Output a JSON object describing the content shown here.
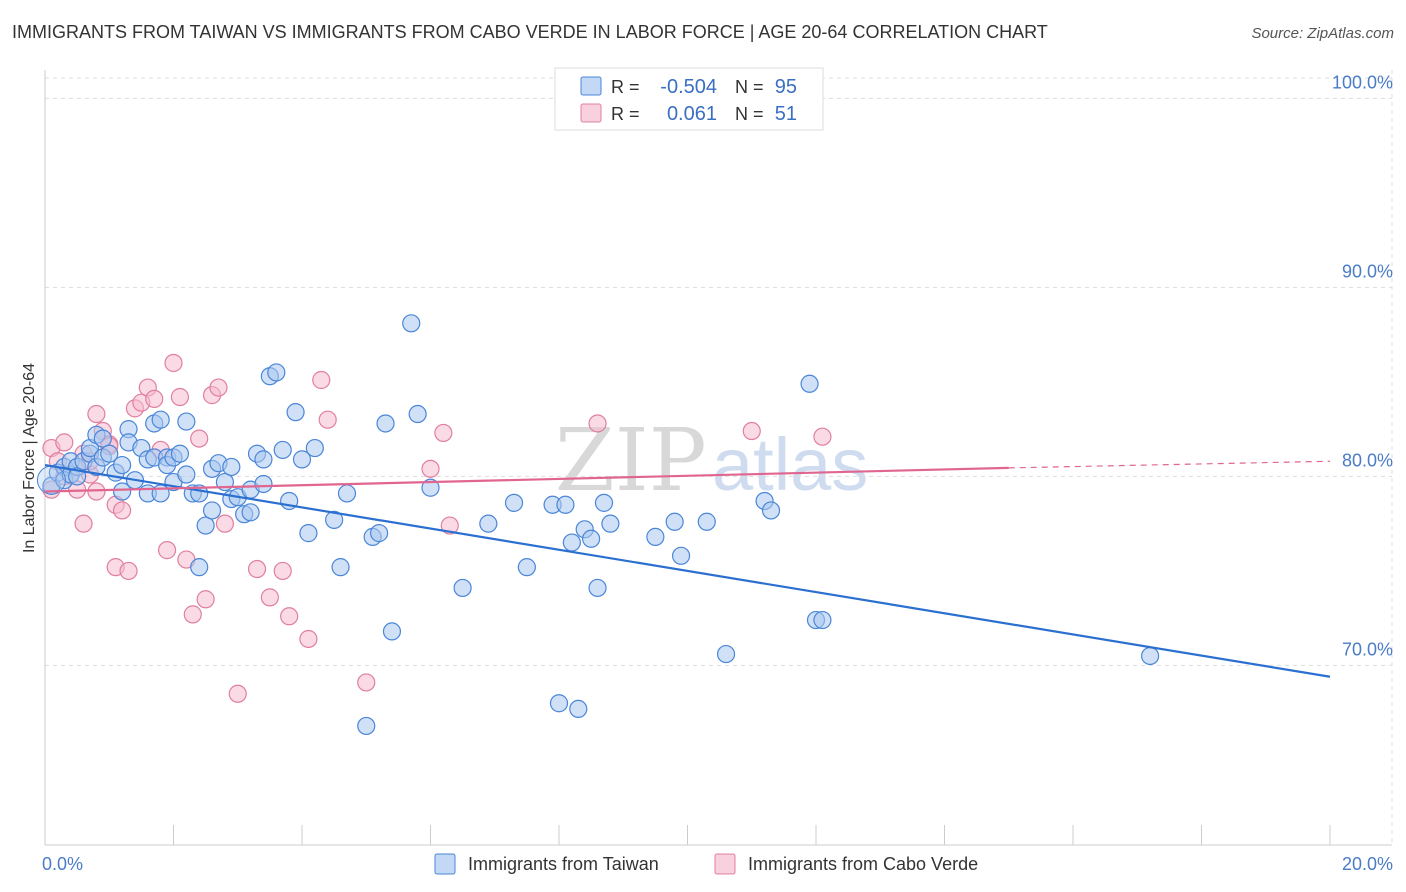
{
  "title": "IMMIGRANTS FROM TAIWAN VS IMMIGRANTS FROM CABO VERDE IN LABOR FORCE | AGE 20-64 CORRELATION CHART",
  "source": "Source: ZipAtlas.com",
  "watermark": {
    "zip": "ZIP",
    "atlas": "atlas"
  },
  "colors": {
    "taiwan_fill": "#aac8f0",
    "taiwan_stroke": "#4a86d8",
    "taiwan_line": "#2b6fd0",
    "cabo_fill": "#f6bcd0",
    "cabo_stroke": "#e07fa0",
    "cabo_line": "#e06690",
    "grid": "#dddddd",
    "tick_text": "#4a7cc7"
  },
  "legend": {
    "rows": [
      {
        "r_label": "R =",
        "r_value": "-0.504",
        "n_label": "N =",
        "n_value": "95",
        "series": "taiwan"
      },
      {
        "r_label": "R =",
        "r_value": "0.061",
        "n_label": "N =",
        "n_value": "51",
        "series": "cabo"
      }
    ]
  },
  "chart_data": {
    "type": "scatter",
    "title": "IMMIGRANTS FROM TAIWAN VS IMMIGRANTS FROM CABO VERDE IN LABOR FORCE | AGE 20-64 CORRELATION CHART",
    "xlabel": "",
    "ylabel": "In Labor Force | Age 20-64",
    "xlim": [
      0,
      20
    ],
    "ylim": [
      60.5,
      101.5
    ],
    "x_tick_labels": [
      "0.0%",
      "20.0%"
    ],
    "x_tick_values": [
      0,
      20
    ],
    "y_tick_labels": [
      "70.0%",
      "80.0%",
      "90.0%",
      "100.0%"
    ],
    "y_tick_values": [
      70,
      80,
      90,
      100
    ],
    "grid": true,
    "legend_position": "top-center",
    "series": [
      {
        "name": "Immigrants from Taiwan",
        "key": "taiwan",
        "trend": {
          "x1": 0,
          "y1": 80.6,
          "x2": 20,
          "y2": 69.4,
          "dashed_from": null
        },
        "points": [
          [
            0.1,
            79.5
          ],
          [
            0.2,
            80.2
          ],
          [
            0.3,
            80.5
          ],
          [
            0.3,
            79.8
          ],
          [
            0.4,
            80.1
          ],
          [
            0.4,
            80.8
          ],
          [
            0.5,
            80.5
          ],
          [
            0.5,
            80.0
          ],
          [
            0.6,
            80.8
          ],
          [
            0.7,
            81.2
          ],
          [
            0.7,
            81.5
          ],
          [
            0.8,
            82.2
          ],
          [
            0.8,
            80.5
          ],
          [
            0.9,
            81.0
          ],
          [
            0.9,
            82.0
          ],
          [
            1.0,
            81.2
          ],
          [
            1.1,
            80.2
          ],
          [
            1.2,
            79.2
          ],
          [
            1.2,
            80.6
          ],
          [
            1.3,
            82.5
          ],
          [
            1.3,
            81.8
          ],
          [
            1.4,
            79.8
          ],
          [
            1.5,
            81.5
          ],
          [
            1.6,
            79.1
          ],
          [
            1.6,
            80.9
          ],
          [
            1.7,
            82.8
          ],
          [
            1.7,
            81.0
          ],
          [
            1.8,
            79.1
          ],
          [
            1.8,
            83.0
          ],
          [
            1.9,
            81.0
          ],
          [
            1.9,
            80.6
          ],
          [
            2.0,
            79.7
          ],
          [
            2.0,
            81.0
          ],
          [
            2.1,
            81.2
          ],
          [
            2.2,
            80.1
          ],
          [
            2.2,
            82.9
          ],
          [
            2.3,
            79.1
          ],
          [
            2.4,
            79.1
          ],
          [
            2.4,
            75.2
          ],
          [
            2.5,
            77.4
          ],
          [
            2.6,
            78.2
          ],
          [
            2.6,
            80.4
          ],
          [
            2.7,
            80.7
          ],
          [
            2.8,
            79.7
          ],
          [
            2.9,
            80.5
          ],
          [
            2.9,
            78.8
          ],
          [
            3.0,
            78.9
          ],
          [
            3.1,
            78.0
          ],
          [
            3.2,
            79.3
          ],
          [
            3.2,
            78.1
          ],
          [
            3.3,
            81.2
          ],
          [
            3.4,
            79.6
          ],
          [
            3.4,
            80.9
          ],
          [
            3.5,
            85.3
          ],
          [
            3.6,
            85.5
          ],
          [
            3.7,
            81.4
          ],
          [
            3.8,
            78.7
          ],
          [
            3.9,
            83.4
          ],
          [
            4.0,
            80.9
          ],
          [
            4.1,
            77.0
          ],
          [
            4.2,
            81.5
          ],
          [
            4.5,
            77.7
          ],
          [
            4.6,
            75.2
          ],
          [
            4.7,
            79.1
          ],
          [
            5.0,
            66.8
          ],
          [
            5.1,
            76.8
          ],
          [
            5.2,
            77.0
          ],
          [
            5.3,
            82.8
          ],
          [
            5.4,
            71.8
          ],
          [
            5.7,
            88.1
          ],
          [
            5.8,
            83.3
          ],
          [
            6.0,
            79.4
          ],
          [
            6.5,
            74.1
          ],
          [
            6.9,
            77.5
          ],
          [
            7.3,
            78.6
          ],
          [
            7.5,
            75.2
          ],
          [
            7.9,
            78.5
          ],
          [
            8.0,
            68.0
          ],
          [
            8.1,
            78.5
          ],
          [
            8.2,
            76.5
          ],
          [
            8.3,
            67.7
          ],
          [
            8.4,
            77.2
          ],
          [
            8.5,
            76.7
          ],
          [
            8.6,
            74.1
          ],
          [
            8.7,
            78.6
          ],
          [
            8.8,
            77.5
          ],
          [
            9.5,
            76.8
          ],
          [
            9.8,
            77.6
          ],
          [
            9.9,
            75.8
          ],
          [
            10.3,
            77.6
          ],
          [
            10.6,
            70.6
          ],
          [
            11.2,
            78.7
          ],
          [
            11.3,
            78.2
          ],
          [
            11.9,
            84.9
          ],
          [
            12.0,
            72.4
          ],
          [
            12.1,
            72.4
          ],
          [
            17.2,
            70.5
          ]
        ]
      },
      {
        "name": "Immigrants from Cabo Verde",
        "key": "cabo",
        "trend": {
          "x1": 0,
          "y1": 79.2,
          "x2": 15.0,
          "y2": 80.45,
          "dashed_to": {
            "x": 20,
            "y": 80.8
          }
        },
        "points": [
          [
            0.1,
            81.5
          ],
          [
            0.1,
            79.3
          ],
          [
            0.2,
            80.8
          ],
          [
            0.3,
            81.8
          ],
          [
            0.3,
            80.0
          ],
          [
            0.4,
            80.1
          ],
          [
            0.5,
            80.5
          ],
          [
            0.5,
            79.3
          ],
          [
            0.6,
            77.5
          ],
          [
            0.6,
            81.2
          ],
          [
            0.7,
            80.1
          ],
          [
            0.7,
            80.8
          ],
          [
            0.8,
            79.2
          ],
          [
            0.8,
            83.3
          ],
          [
            0.9,
            82.4
          ],
          [
            1.0,
            81.7
          ],
          [
            1.0,
            81.6
          ],
          [
            1.1,
            78.5
          ],
          [
            1.1,
            75.2
          ],
          [
            1.2,
            78.2
          ],
          [
            1.3,
            75.0
          ],
          [
            1.4,
            83.6
          ],
          [
            1.5,
            83.9
          ],
          [
            1.6,
            84.7
          ],
          [
            1.7,
            84.1
          ],
          [
            1.8,
            81.4
          ],
          [
            1.9,
            76.1
          ],
          [
            2.0,
            86.0
          ],
          [
            2.1,
            84.2
          ],
          [
            2.2,
            75.6
          ],
          [
            2.3,
            72.7
          ],
          [
            2.4,
            82.0
          ],
          [
            2.5,
            73.5
          ],
          [
            2.6,
            84.3
          ],
          [
            2.7,
            84.7
          ],
          [
            2.8,
            77.5
          ],
          [
            3.0,
            68.5
          ],
          [
            3.3,
            75.1
          ],
          [
            3.5,
            73.6
          ],
          [
            3.7,
            75.0
          ],
          [
            3.8,
            72.6
          ],
          [
            4.1,
            71.4
          ],
          [
            4.3,
            85.1
          ],
          [
            4.4,
            83.0
          ],
          [
            5.0,
            69.1
          ],
          [
            6.2,
            82.3
          ],
          [
            6.0,
            80.4
          ],
          [
            6.3,
            77.4
          ],
          [
            8.6,
            82.8
          ],
          [
            12.1,
            82.1
          ],
          [
            11.0,
            82.4
          ]
        ]
      }
    ]
  },
  "bottom_legend": {
    "taiwan_label": "Immigrants from Taiwan",
    "cabo_label": "Immigrants from Cabo Verde"
  }
}
